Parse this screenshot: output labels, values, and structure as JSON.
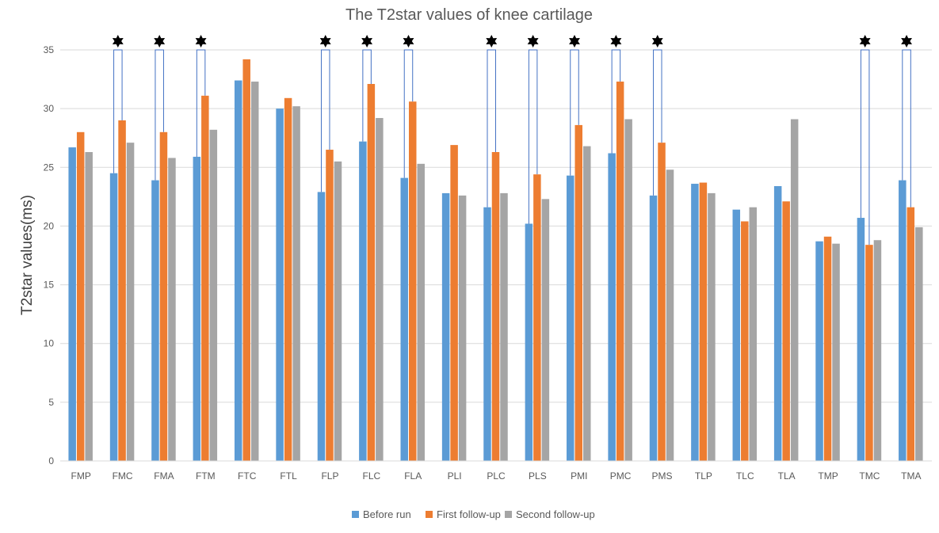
{
  "chart_data": {
    "type": "bar",
    "title": "The T2star values of knee cartilage",
    "xlabel": "",
    "ylabel": "T2star values(ms)",
    "ylim": [
      0,
      35
    ],
    "yticks": [
      0,
      5,
      10,
      15,
      20,
      25,
      30,
      35
    ],
    "grid": true,
    "legend_position": "bottom",
    "categories": [
      "FMP",
      "FMC",
      "FMA",
      "FTM",
      "FTC",
      "FTL",
      "FLP",
      "FLC",
      "FLA",
      "PLI",
      "PLC",
      "PLS",
      "PMI",
      "PMC",
      "PMS",
      "TLP",
      "TLC",
      "TLA",
      "TMP",
      "TMC",
      "TMA"
    ],
    "series": [
      {
        "name": "Before run",
        "color": "#5B9BD5",
        "values": [
          26.7,
          24.5,
          23.9,
          25.9,
          32.4,
          30.0,
          22.9,
          27.2,
          24.1,
          22.8,
          21.6,
          20.2,
          24.3,
          26.2,
          22.6,
          23.6,
          21.4,
          23.4,
          18.7,
          20.7,
          23.9
        ]
      },
      {
        "name": "First follow-up",
        "color": "#ED7D31",
        "values": [
          28.0,
          29.0,
          28.0,
          31.1,
          34.2,
          30.9,
          26.5,
          32.1,
          30.6,
          26.9,
          26.3,
          24.4,
          28.6,
          32.3,
          27.1,
          23.7,
          20.4,
          22.1,
          19.1,
          18.4,
          21.6
        ]
      },
      {
        "name": "Second follow-up",
        "color": "#A5A5A5",
        "values": [
          26.3,
          27.1,
          25.8,
          28.2,
          32.3,
          30.2,
          25.5,
          29.2,
          25.3,
          22.6,
          22.8,
          22.3,
          26.8,
          29.1,
          24.8,
          22.8,
          21.6,
          29.1,
          18.5,
          18.8,
          19.9
        ]
      }
    ],
    "significance": {
      "marker": "star",
      "categories": [
        "FMC",
        "FMA",
        "FTM",
        "FLP",
        "FLC",
        "FLA",
        "PLC",
        "PLS",
        "PMI",
        "PMC",
        "PMS",
        "TMC",
        "TMA"
      ]
    },
    "colors": {
      "grid": "#D9D9D9",
      "bracket": "#4472C4",
      "text": "#595959"
    }
  }
}
